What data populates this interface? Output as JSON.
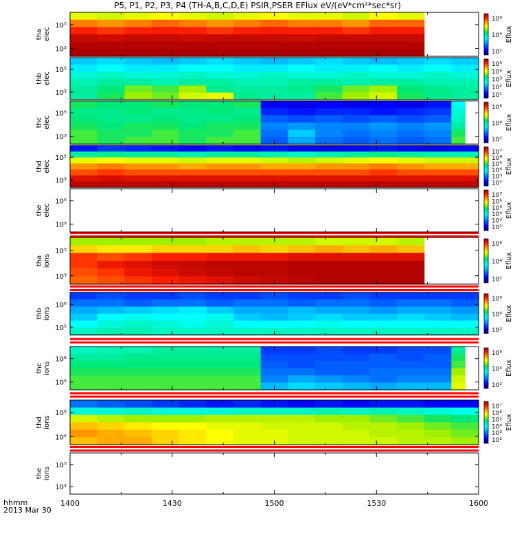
{
  "title": "P5, P1, P2, P3, P4 (TH-A,B,C,D,E) PSIR,PSER EFlux eV/(eV*cm²*sec*sr)",
  "time_axis": {
    "format_label": "hhmm",
    "date_label": "2013 Mar 30",
    "ticks": [
      "1400",
      "1430",
      "1500",
      "1530",
      "1600"
    ]
  },
  "chart_data": {
    "type": "heatmap",
    "x_range": [
      "1400",
      "1600"
    ],
    "time_bins": 15,
    "colorbar_label": "Eflux",
    "panels": [
      {
        "label": [
          "tha",
          "elec"
        ],
        "y_ticks": [
          "10⁵",
          "10³"
        ],
        "cbar_ticks": [
          "10⁶",
          "10⁴",
          "10²"
        ],
        "end_bin": 13,
        "rows": [
          [
            0.68,
            0.66,
            0.68,
            0.7,
            0.68,
            0.66,
            0.68,
            0.7,
            0.68,
            0.68,
            0.66,
            0.7,
            0.68
          ],
          [
            0.82,
            0.8,
            0.82,
            0.84,
            0.82,
            0.8,
            0.82,
            0.84,
            0.82,
            0.82,
            0.8,
            0.84,
            0.84
          ],
          [
            0.9,
            0.88,
            0.9,
            0.91,
            0.9,
            0.88,
            0.9,
            0.91,
            0.9,
            0.9,
            0.88,
            0.91,
            0.91
          ],
          [
            0.97,
            0.96,
            0.97,
            0.97,
            0.96,
            0.97,
            0.97,
            0.97,
            0.96,
            0.97,
            0.97,
            0.97,
            0.97
          ],
          [
            0.99,
            0.99,
            0.99,
            0.99,
            0.99,
            0.99,
            0.99,
            0.99,
            0.99,
            0.99,
            0.99,
            0.99,
            0.99
          ],
          [
            1.0,
            1.0,
            1.0,
            1.0,
            1.0,
            1.0,
            1.0,
            1.0,
            1.0,
            1.0,
            1.0,
            1.0,
            1.0
          ]
        ]
      },
      {
        "label": [
          "thb",
          "elec"
        ],
        "y_ticks": [
          "10⁵",
          "10³"
        ],
        "cbar_ticks": [
          "10⁵",
          "10⁴",
          "10³",
          "10²",
          "10¹"
        ],
        "end_bin": 15,
        "rows": [
          [
            0.34,
            0.36,
            0.34,
            0.32,
            0.34,
            0.36,
            0.34,
            0.32,
            0.34,
            0.36,
            0.34,
            0.32,
            0.34,
            0.36,
            0.34
          ],
          [
            0.38,
            0.4,
            0.38,
            0.38,
            0.4,
            0.4,
            0.38,
            0.38,
            0.4,
            0.38,
            0.38,
            0.4,
            0.38,
            0.4,
            0.38
          ],
          [
            0.44,
            0.46,
            0.44,
            0.44,
            0.46,
            0.44,
            0.44,
            0.46,
            0.44,
            0.44,
            0.46,
            0.44,
            0.44,
            0.46,
            0.44
          ],
          [
            0.48,
            0.5,
            0.5,
            0.48,
            0.5,
            0.5,
            0.48,
            0.48,
            0.5,
            0.5,
            0.48,
            0.5,
            0.5,
            0.48,
            0.48
          ],
          [
            0.5,
            0.54,
            0.6,
            0.58,
            0.62,
            0.52,
            0.5,
            0.5,
            0.52,
            0.56,
            0.6,
            0.62,
            0.54,
            0.52,
            0.5
          ],
          [
            0.5,
            0.56,
            0.62,
            0.6,
            0.66,
            0.68,
            0.52,
            0.5,
            0.5,
            0.58,
            0.62,
            0.66,
            0.56,
            0.52,
            0.5
          ]
        ]
      },
      {
        "label": [
          "thc",
          "elec"
        ],
        "y_ticks": [
          "10⁵",
          "10³"
        ],
        "cbar_ticks": [
          "10⁶",
          "10⁴",
          "10²"
        ],
        "end_bin": 14.5,
        "rows": [
          [
            0.56,
            0.54,
            0.54,
            0.56,
            0.54,
            0.54,
            0.56,
            0.12,
            0.1,
            0.12,
            0.1,
            0.12,
            0.1,
            0.14,
            0.4
          ],
          [
            0.52,
            0.52,
            0.54,
            0.52,
            0.52,
            0.54,
            0.52,
            0.16,
            0.14,
            0.16,
            0.16,
            0.14,
            0.16,
            0.18,
            0.44
          ],
          [
            0.54,
            0.52,
            0.52,
            0.54,
            0.52,
            0.52,
            0.54,
            0.22,
            0.2,
            0.22,
            0.2,
            0.22,
            0.2,
            0.22,
            0.46
          ],
          [
            0.56,
            0.54,
            0.56,
            0.56,
            0.54,
            0.56,
            0.56,
            0.26,
            0.28,
            0.26,
            0.26,
            0.28,
            0.26,
            0.28,
            0.5
          ],
          [
            0.58,
            0.56,
            0.56,
            0.58,
            0.56,
            0.56,
            0.58,
            0.24,
            0.34,
            0.26,
            0.24,
            0.26,
            0.24,
            0.26,
            0.56
          ],
          [
            0.58,
            0.56,
            0.58,
            0.58,
            0.56,
            0.58,
            0.58,
            0.22,
            0.3,
            0.24,
            0.22,
            0.24,
            0.22,
            0.24,
            0.58
          ]
        ]
      },
      {
        "label": [
          "thd",
          "elec"
        ],
        "y_ticks": [
          "10⁵",
          "10³"
        ],
        "cbar_ticks": [
          "10⁷",
          "10⁶",
          "10⁵",
          "10⁴",
          "10³",
          "10²"
        ],
        "end_bin": 15,
        "rows": [
          [
            0.14,
            0.18,
            0.16,
            0.14,
            0.12,
            0.14,
            0.12,
            0.14,
            0.1,
            0.1,
            0.12,
            0.14,
            0.12,
            0.1,
            0.12
          ],
          [
            0.5,
            0.52,
            0.5,
            0.5,
            0.48,
            0.5,
            0.5,
            0.48,
            0.46,
            0.48,
            0.5,
            0.52,
            0.5,
            0.48,
            0.48
          ],
          [
            0.68,
            0.7,
            0.68,
            0.68,
            0.66,
            0.68,
            0.68,
            0.66,
            0.64,
            0.66,
            0.68,
            0.7,
            0.68,
            0.66,
            0.66
          ],
          [
            0.8,
            0.82,
            0.8,
            0.8,
            0.78,
            0.8,
            0.8,
            0.78,
            0.78,
            0.8,
            0.8,
            0.82,
            0.8,
            0.78,
            0.78
          ],
          [
            0.86,
            0.88,
            0.86,
            0.86,
            0.86,
            0.86,
            0.86,
            0.86,
            0.86,
            0.86,
            0.86,
            0.88,
            0.86,
            0.86,
            0.86
          ],
          [
            0.94,
            0.95,
            0.94,
            0.94,
            0.94,
            0.94,
            0.94,
            0.94,
            0.94,
            0.94,
            0.94,
            0.94,
            0.94,
            0.94,
            0.94
          ],
          [
            0.98,
            0.98,
            0.98,
            0.98,
            0.98,
            0.98,
            0.98,
            0.98,
            0.98,
            0.98,
            0.98,
            0.98,
            0.98,
            0.98,
            0.98
          ]
        ]
      },
      {
        "label": [
          "the",
          "elec"
        ],
        "y_ticks": [
          "10⁵",
          "10³"
        ],
        "cbar_ticks": [
          "10⁷",
          "10⁶",
          "10⁵",
          "10⁴",
          "10³",
          "10²"
        ],
        "end_bin": 0,
        "rows": []
      },
      {
        "label": [
          "tha",
          "ions"
        ],
        "y_ticks": [
          "10⁵",
          "10³"
        ],
        "cbar_ticks": [
          "10⁶",
          "10⁴",
          "10²"
        ],
        "end_bin": 13,
        "rows": [
          [
            0.62,
            0.62,
            0.62,
            0.62,
            0.62,
            0.64,
            0.64,
            0.64,
            0.64,
            0.66,
            0.66,
            0.66,
            0.64
          ],
          [
            0.74,
            0.72,
            0.72,
            0.74,
            0.74,
            0.74,
            0.76,
            0.74,
            0.76,
            0.78,
            0.76,
            0.78,
            0.76
          ],
          [
            0.88,
            0.86,
            0.88,
            0.9,
            0.9,
            0.92,
            0.92,
            0.92,
            0.94,
            0.94,
            0.94,
            0.94,
            0.94
          ],
          [
            0.88,
            0.92,
            0.94,
            0.96,
            0.97,
            0.98,
            0.98,
            0.98,
            0.99,
            0.99,
            0.99,
            0.99,
            0.99
          ],
          [
            0.86,
            0.88,
            0.92,
            0.94,
            0.96,
            0.97,
            0.98,
            0.98,
            0.99,
            0.99,
            0.99,
            0.99,
            0.99
          ],
          [
            0.84,
            0.86,
            0.88,
            0.9,
            0.92,
            0.94,
            0.96,
            0.97,
            0.98,
            0.99,
            0.99,
            0.99,
            0.99
          ]
        ]
      },
      {
        "label": [
          "thb",
          "ions"
        ],
        "y_ticks": [
          "10⁶",
          "10⁵"
        ],
        "cbar_ticks": [
          "10⁶",
          "10⁴",
          "10²"
        ],
        "end_bin": 15,
        "rows": [
          [
            0.18,
            0.2,
            0.18,
            0.18,
            0.2,
            0.18,
            0.18,
            0.2,
            0.18,
            0.18,
            0.2,
            0.18,
            0.18,
            0.18,
            0.18
          ],
          [
            0.24,
            0.24,
            0.22,
            0.24,
            0.24,
            0.22,
            0.24,
            0.24,
            0.22,
            0.24,
            0.24,
            0.22,
            0.24,
            0.24,
            0.22
          ],
          [
            0.3,
            0.32,
            0.34,
            0.36,
            0.38,
            0.34,
            0.3,
            0.3,
            0.32,
            0.3,
            0.3,
            0.28,
            0.3,
            0.3,
            0.28
          ],
          [
            0.34,
            0.4,
            0.42,
            0.4,
            0.4,
            0.42,
            0.34,
            0.32,
            0.34,
            0.36,
            0.34,
            0.34,
            0.36,
            0.34,
            0.32
          ],
          [
            0.4,
            0.44,
            0.46,
            0.44,
            0.42,
            0.44,
            0.4,
            0.4,
            0.4,
            0.42,
            0.4,
            0.4,
            0.4,
            0.4,
            0.4
          ],
          [
            0.46,
            0.48,
            0.48,
            0.46,
            0.46,
            0.46,
            0.46,
            0.46,
            0.46,
            0.46,
            0.46,
            0.46,
            0.46,
            0.46,
            0.46
          ]
        ]
      },
      {
        "label": [
          "thc",
          "ions"
        ],
        "y_ticks": [
          "10⁶",
          "10⁵"
        ],
        "cbar_ticks": [
          "10⁶",
          "10⁴",
          "10²"
        ],
        "end_bin": 14.5,
        "rows": [
          [
            0.46,
            0.48,
            0.48,
            0.5,
            0.5,
            0.5,
            0.5,
            0.18,
            0.18,
            0.2,
            0.18,
            0.18,
            0.2,
            0.2,
            0.5
          ],
          [
            0.5,
            0.5,
            0.52,
            0.52,
            0.52,
            0.52,
            0.52,
            0.2,
            0.2,
            0.2,
            0.2,
            0.22,
            0.2,
            0.22,
            0.56
          ],
          [
            0.54,
            0.54,
            0.54,
            0.54,
            0.54,
            0.54,
            0.54,
            0.22,
            0.2,
            0.22,
            0.22,
            0.22,
            0.22,
            0.22,
            0.58
          ],
          [
            0.56,
            0.56,
            0.56,
            0.56,
            0.56,
            0.56,
            0.56,
            0.24,
            0.24,
            0.22,
            0.22,
            0.24,
            0.24,
            0.24,
            0.62
          ],
          [
            0.58,
            0.58,
            0.58,
            0.58,
            0.58,
            0.58,
            0.58,
            0.26,
            0.3,
            0.28,
            0.26,
            0.24,
            0.26,
            0.26,
            0.66
          ],
          [
            0.58,
            0.58,
            0.58,
            0.58,
            0.58,
            0.58,
            0.58,
            0.32,
            0.36,
            0.34,
            0.32,
            0.3,
            0.32,
            0.32,
            0.68
          ]
        ]
      },
      {
        "label": [
          "thd",
          "ions"
        ],
        "y_ticks": [
          "10⁶",
          "10⁵"
        ],
        "cbar_ticks": [
          "10⁷",
          "10⁶",
          "10⁵",
          "10⁴",
          "10³",
          "10²"
        ],
        "end_bin": 15,
        "rows": [
          [
            0.24,
            0.22,
            0.2,
            0.18,
            0.16,
            0.14,
            0.16,
            0.14,
            0.12,
            0.14,
            0.12,
            0.14,
            0.14,
            0.12,
            0.12
          ],
          [
            0.44,
            0.44,
            0.46,
            0.44,
            0.44,
            0.44,
            0.46,
            0.46,
            0.46,
            0.48,
            0.46,
            0.48,
            0.46,
            0.44,
            0.42
          ],
          [
            0.66,
            0.64,
            0.62,
            0.62,
            0.62,
            0.64,
            0.64,
            0.64,
            0.64,
            0.62,
            0.62,
            0.6,
            0.58,
            0.56,
            0.54
          ],
          [
            0.76,
            0.74,
            0.72,
            0.7,
            0.7,
            0.68,
            0.68,
            0.66,
            0.66,
            0.66,
            0.64,
            0.64,
            0.62,
            0.6,
            0.58
          ],
          [
            0.8,
            0.78,
            0.76,
            0.74,
            0.72,
            0.7,
            0.68,
            0.68,
            0.66,
            0.66,
            0.66,
            0.64,
            0.64,
            0.62,
            0.6
          ],
          [
            0.76,
            0.78,
            0.78,
            0.74,
            0.72,
            0.7,
            0.68,
            0.68,
            0.66,
            0.66,
            0.66,
            0.66,
            0.64,
            0.64,
            0.62
          ]
        ]
      },
      {
        "label": [
          "the",
          "ions"
        ],
        "y_ticks": [
          "10⁵",
          "10³"
        ],
        "cbar_ticks": [],
        "end_bin": 0,
        "rows": []
      }
    ]
  }
}
